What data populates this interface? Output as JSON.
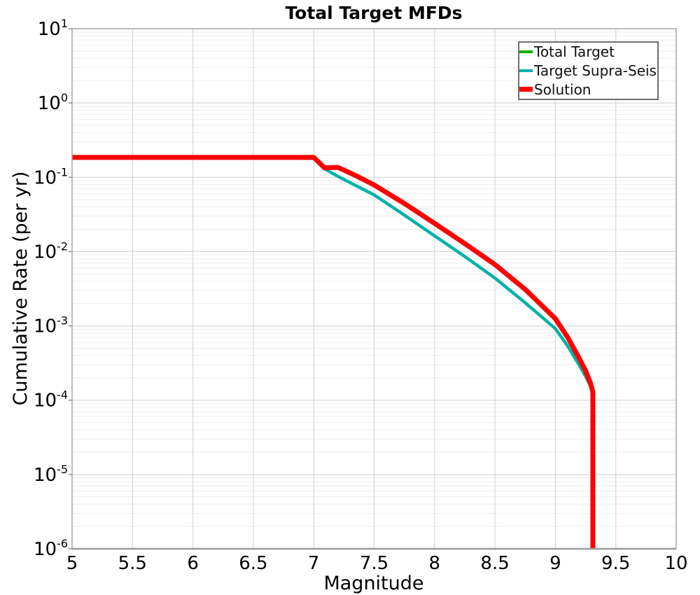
{
  "figure": {
    "title": "Total Target MFDs",
    "xlabel": "Magnitude",
    "ylabel": "Cumulative Rate (per yr)"
  },
  "legend": {
    "position": "top-right",
    "items": [
      {
        "label": "Total Target",
        "color": "#00ad00",
        "thickness": 4
      },
      {
        "label": "Target Supra-Seis",
        "color": "#00b2aa",
        "thickness": 4.5
      },
      {
        "label": "Solution",
        "color": "#ff0000",
        "thickness": 7
      }
    ]
  },
  "chart_data": {
    "type": "line",
    "title": "Total Target MFDs",
    "xlabel": "Magnitude",
    "ylabel": "Cumulative Rate (per yr)",
    "x_axis": {
      "min": 5,
      "max": 10,
      "ticks": [
        5,
        5.5,
        6,
        6.5,
        7,
        7.5,
        8,
        8.5,
        9,
        9.5,
        10
      ]
    },
    "y_axis": {
      "scale": "log",
      "min": 1e-06,
      "max": 10,
      "tick_exponents": [
        1,
        0,
        -1,
        -2,
        -3,
        -4,
        -5,
        -6
      ]
    },
    "grid": {
      "vertical": "major-every-0.5",
      "horizontal": "log-major-and-minor",
      "major_color": "#d7d7d7",
      "minor_color": "#ededed",
      "border_color": "#a9a9a9"
    },
    "legend_position": "top-right",
    "series": [
      {
        "name": "Total Target",
        "color": "#00ad00",
        "width": 4,
        "points": [
          [
            5.0,
            0.185
          ],
          [
            5.5,
            0.185
          ],
          [
            6.0,
            0.185
          ],
          [
            6.5,
            0.185
          ],
          [
            7.0,
            0.185
          ],
          [
            7.09,
            0.134
          ],
          [
            7.2,
            0.136
          ],
          [
            7.35,
            0.105
          ],
          [
            7.5,
            0.079
          ],
          [
            7.75,
            0.0445
          ],
          [
            8.0,
            0.024
          ],
          [
            8.25,
            0.0128
          ],
          [
            8.5,
            0.0067
          ],
          [
            8.75,
            0.0031
          ],
          [
            9.0,
            0.00125
          ],
          [
            9.1,
            0.00071
          ],
          [
            9.2,
            0.00036
          ],
          [
            9.25,
            0.00025
          ],
          [
            9.29,
            0.00017
          ],
          [
            9.31,
            0.00013
          ],
          [
            9.31,
            1e-06
          ]
        ]
      },
      {
        "name": "Target Supra-Seis",
        "color": "#00b2aa",
        "width": 4.5,
        "points": [
          [
            7.09,
            0.13
          ],
          [
            7.2,
            0.103
          ],
          [
            7.35,
            0.077
          ],
          [
            7.5,
            0.058
          ],
          [
            7.75,
            0.031
          ],
          [
            8.0,
            0.0163
          ],
          [
            8.25,
            0.0086
          ],
          [
            8.5,
            0.0044
          ],
          [
            8.75,
            0.00205
          ],
          [
            9.0,
            0.00092
          ],
          [
            9.1,
            0.00054
          ],
          [
            9.2,
            0.00029
          ],
          [
            9.25,
            0.00021
          ],
          [
            9.29,
            0.000155
          ],
          [
            9.31,
            0.00013
          ]
        ]
      },
      {
        "name": "Solution",
        "color": "#ff0000",
        "width": 7,
        "points": [
          [
            5.0,
            0.185
          ],
          [
            5.5,
            0.185
          ],
          [
            6.0,
            0.185
          ],
          [
            6.5,
            0.185
          ],
          [
            7.0,
            0.185
          ],
          [
            7.09,
            0.134
          ],
          [
            7.2,
            0.136
          ],
          [
            7.35,
            0.105
          ],
          [
            7.5,
            0.079
          ],
          [
            7.75,
            0.0445
          ],
          [
            8.0,
            0.024
          ],
          [
            8.25,
            0.0128
          ],
          [
            8.5,
            0.0067
          ],
          [
            8.75,
            0.0031
          ],
          [
            9.0,
            0.00125
          ],
          [
            9.1,
            0.00071
          ],
          [
            9.2,
            0.00036
          ],
          [
            9.25,
            0.00025
          ],
          [
            9.29,
            0.00017
          ],
          [
            9.31,
            0.00013
          ],
          [
            9.31,
            1e-06
          ]
        ]
      }
    ]
  }
}
